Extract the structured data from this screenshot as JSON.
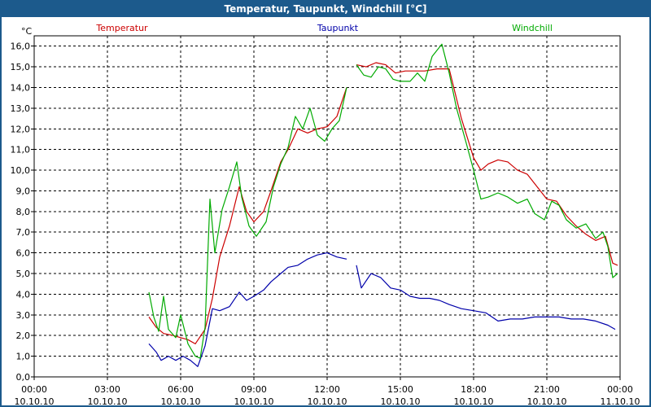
{
  "window": {
    "title": "Temperatur, Taupunkt, Windchill [°C]"
  },
  "chart_data": {
    "type": "line",
    "title": "Temperatur, Taupunkt, Windchill [°C]",
    "ylabel": "°C",
    "xlabel": "",
    "ylim": [
      0,
      16.5
    ],
    "xlim": [
      0,
      24
    ],
    "grid": true,
    "legend_placement": "top",
    "yticks": [
      0,
      1,
      2,
      3,
      4,
      5,
      6,
      7,
      8,
      9,
      10,
      11,
      12,
      13,
      14,
      15,
      16
    ],
    "ytick_labels": [
      "0,0",
      "1,0",
      "2,0",
      "3,0",
      "4,0",
      "5,0",
      "6,0",
      "7,0",
      "8,0",
      "9,0",
      "10,0",
      "11,0",
      "12,0",
      "13,0",
      "14,0",
      "15,0",
      "16,0"
    ],
    "xticks": [
      {
        "x": 0,
        "time": "00:00",
        "date": "10.10.10"
      },
      {
        "x": 3,
        "time": "03:00",
        "date": "10.10.10"
      },
      {
        "x": 6,
        "time": "06:00",
        "date": "10.10.10"
      },
      {
        "x": 9,
        "time": "09:00",
        "date": "10.10.10"
      },
      {
        "x": 12,
        "time": "12:00",
        "date": "10.10.10"
      },
      {
        "x": 15,
        "time": "15:00",
        "date": "10.10.10"
      },
      {
        "x": 18,
        "time": "18:00",
        "date": "10.10.10"
      },
      {
        "x": 21,
        "time": "21:00",
        "date": "10.10.10"
      },
      {
        "x": 24,
        "time": "00:00",
        "date": "11.10.10"
      }
    ],
    "series": [
      {
        "name": "Temperatur",
        "color": "#cc0000",
        "segments": [
          [
            [
              4.7,
              2.9
            ],
            [
              5.0,
              2.4
            ],
            [
              5.3,
              2.1
            ],
            [
              5.7,
              2.0
            ],
            [
              6.0,
              1.9
            ],
            [
              6.3,
              1.8
            ],
            [
              6.6,
              1.6
            ],
            [
              7.0,
              2.3
            ],
            [
              7.3,
              3.8
            ],
            [
              7.6,
              5.8
            ],
            [
              8.0,
              7.3
            ],
            [
              8.4,
              9.2
            ],
            [
              8.7,
              8.0
            ],
            [
              9.0,
              7.5
            ],
            [
              9.4,
              8.0
            ],
            [
              9.7,
              9.0
            ],
            [
              10.1,
              10.4
            ],
            [
              10.4,
              11.0
            ],
            [
              10.8,
              12.0
            ],
            [
              11.2,
              11.8
            ],
            [
              11.6,
              12.0
            ],
            [
              12.0,
              12.1
            ],
            [
              12.4,
              12.6
            ],
            [
              12.8,
              14.0
            ]
          ],
          [
            [
              13.2,
              15.1
            ],
            [
              13.6,
              15.0
            ],
            [
              14.0,
              15.2
            ],
            [
              14.4,
              15.1
            ],
            [
              14.8,
              14.7
            ],
            [
              15.2,
              14.8
            ],
            [
              15.6,
              14.8
            ],
            [
              16.0,
              14.8
            ],
            [
              16.5,
              14.9
            ],
            [
              17.0,
              14.9
            ],
            [
              17.5,
              12.5
            ],
            [
              18.0,
              10.6
            ],
            [
              18.3,
              10.0
            ],
            [
              18.6,
              10.3
            ],
            [
              19.0,
              10.5
            ],
            [
              19.4,
              10.4
            ],
            [
              19.8,
              10.0
            ],
            [
              20.2,
              9.8
            ],
            [
              20.6,
              9.2
            ],
            [
              21.0,
              8.6
            ],
            [
              21.4,
              8.5
            ],
            [
              21.8,
              7.8
            ],
            [
              22.2,
              7.3
            ],
            [
              22.6,
              6.9
            ],
            [
              23.0,
              6.6
            ],
            [
              23.4,
              6.8
            ],
            [
              23.7,
              5.5
            ],
            [
              23.9,
              5.4
            ]
          ]
        ]
      },
      {
        "name": "Taupunkt",
        "color": "#0000aa",
        "segments": [
          [
            [
              4.7,
              1.6
            ],
            [
              5.0,
              1.2
            ],
            [
              5.2,
              0.8
            ],
            [
              5.5,
              1.0
            ],
            [
              5.8,
              0.8
            ],
            [
              6.1,
              1.0
            ],
            [
              6.4,
              0.8
            ],
            [
              6.7,
              0.5
            ],
            [
              7.0,
              1.5
            ],
            [
              7.3,
              3.3
            ],
            [
              7.6,
              3.2
            ],
            [
              8.0,
              3.4
            ],
            [
              8.4,
              4.1
            ],
            [
              8.7,
              3.7
            ],
            [
              9.0,
              3.9
            ],
            [
              9.4,
              4.2
            ],
            [
              9.7,
              4.6
            ],
            [
              10.1,
              5.0
            ],
            [
              10.4,
              5.3
            ],
            [
              10.8,
              5.4
            ],
            [
              11.2,
              5.7
            ],
            [
              11.6,
              5.9
            ],
            [
              12.0,
              6.0
            ],
            [
              12.4,
              5.8
            ],
            [
              12.8,
              5.7
            ]
          ],
          [
            [
              13.2,
              5.4
            ],
            [
              13.4,
              4.3
            ],
            [
              13.8,
              5.0
            ],
            [
              14.2,
              4.8
            ],
            [
              14.6,
              4.3
            ],
            [
              15.0,
              4.2
            ],
            [
              15.4,
              3.9
            ],
            [
              15.8,
              3.8
            ],
            [
              16.2,
              3.8
            ],
            [
              16.6,
              3.7
            ],
            [
              17.0,
              3.5
            ],
            [
              17.5,
              3.3
            ],
            [
              18.0,
              3.2
            ],
            [
              18.5,
              3.1
            ],
            [
              19.0,
              2.7
            ],
            [
              19.5,
              2.8
            ],
            [
              20.0,
              2.8
            ],
            [
              20.5,
              2.9
            ],
            [
              21.0,
              2.9
            ],
            [
              21.5,
              2.9
            ],
            [
              22.0,
              2.8
            ],
            [
              22.5,
              2.8
            ],
            [
              23.0,
              2.7
            ],
            [
              23.5,
              2.5
            ],
            [
              23.8,
              2.3
            ]
          ]
        ]
      },
      {
        "name": "Windchill",
        "color": "#00aa00",
        "segments": [
          [
            [
              4.7,
              4.1
            ],
            [
              4.9,
              2.9
            ],
            [
              5.1,
              2.2
            ],
            [
              5.3,
              3.9
            ],
            [
              5.5,
              2.3
            ],
            [
              5.8,
              1.9
            ],
            [
              6.0,
              3.0
            ],
            [
              6.3,
              1.6
            ],
            [
              6.6,
              1.0
            ],
            [
              6.8,
              0.9
            ],
            [
              7.0,
              2.4
            ],
            [
              7.2,
              8.6
            ],
            [
              7.4,
              6.0
            ],
            [
              7.7,
              8.1
            ],
            [
              8.0,
              9.2
            ],
            [
              8.3,
              10.4
            ],
            [
              8.5,
              8.7
            ],
            [
              8.8,
              7.3
            ],
            [
              9.1,
              6.8
            ],
            [
              9.5,
              7.5
            ],
            [
              9.8,
              9.2
            ],
            [
              10.1,
              10.3
            ],
            [
              10.4,
              11.1
            ],
            [
              10.7,
              12.6
            ],
            [
              11.0,
              12.0
            ],
            [
              11.3,
              13.0
            ],
            [
              11.6,
              11.7
            ],
            [
              11.9,
              11.4
            ],
            [
              12.2,
              12.0
            ],
            [
              12.5,
              12.4
            ],
            [
              12.8,
              14.0
            ]
          ],
          [
            [
              13.2,
              15.1
            ],
            [
              13.5,
              14.6
            ],
            [
              13.8,
              14.5
            ],
            [
              14.1,
              15.0
            ],
            [
              14.4,
              14.9
            ],
            [
              14.7,
              14.4
            ],
            [
              15.0,
              14.3
            ],
            [
              15.4,
              14.3
            ],
            [
              15.7,
              14.7
            ],
            [
              16.0,
              14.3
            ],
            [
              16.3,
              15.5
            ],
            [
              16.7,
              16.1
            ],
            [
              17.0,
              14.7
            ],
            [
              17.3,
              13.0
            ],
            [
              17.7,
              11.3
            ],
            [
              18.0,
              10.0
            ],
            [
              18.3,
              8.6
            ],
            [
              18.6,
              8.7
            ],
            [
              19.0,
              8.9
            ],
            [
              19.4,
              8.7
            ],
            [
              19.8,
              8.4
            ],
            [
              20.2,
              8.6
            ],
            [
              20.5,
              7.9
            ],
            [
              20.9,
              7.6
            ],
            [
              21.2,
              8.5
            ],
            [
              21.5,
              8.3
            ],
            [
              21.8,
              7.6
            ],
            [
              22.2,
              7.2
            ],
            [
              22.6,
              7.4
            ],
            [
              23.0,
              6.7
            ],
            [
              23.3,
              7.0
            ],
            [
              23.5,
              6.3
            ],
            [
              23.7,
              4.8
            ],
            [
              23.9,
              5.0
            ]
          ]
        ]
      }
    ]
  }
}
